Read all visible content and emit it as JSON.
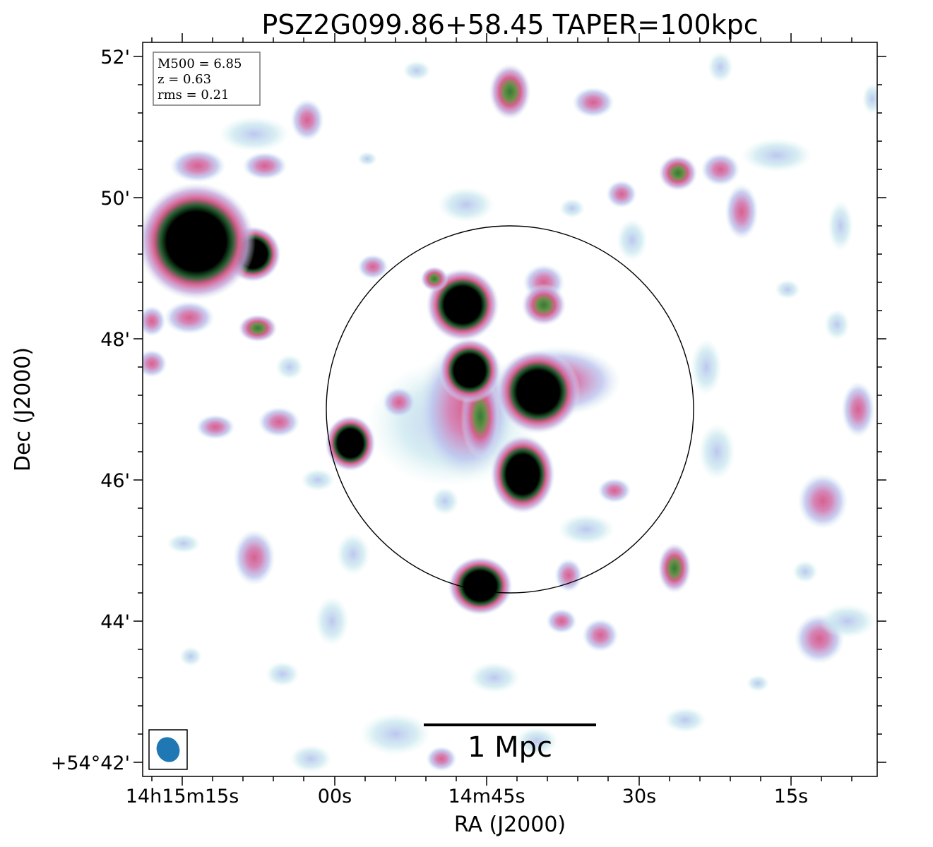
{
  "title": "PSZ2G099.86+58.45 TAPER=100kpc",
  "xlabel": "RA (J2000)",
  "ylabel": "Dec (J2000)",
  "x_ticks": [
    "14h15m15s",
    "00s",
    "14m45s",
    "30s",
    "15s"
  ],
  "y_ticks": [
    "52'",
    "50'",
    "48'",
    "46'",
    "44'",
    "+54°42'"
  ],
  "info_box": {
    "mass": "M500 = 6.85",
    "redshift": "z = 0.63",
    "rms": "rms = 0.21"
  },
  "scale_bar_label": "1 Mpc",
  "colors": {
    "beam": "#1f77b4",
    "colormap": [
      "#ffffff",
      "#cfeeea",
      "#b7c3ee",
      "#c9a0d6",
      "#d3639a",
      "#3d8c3a",
      "#000000"
    ]
  }
}
